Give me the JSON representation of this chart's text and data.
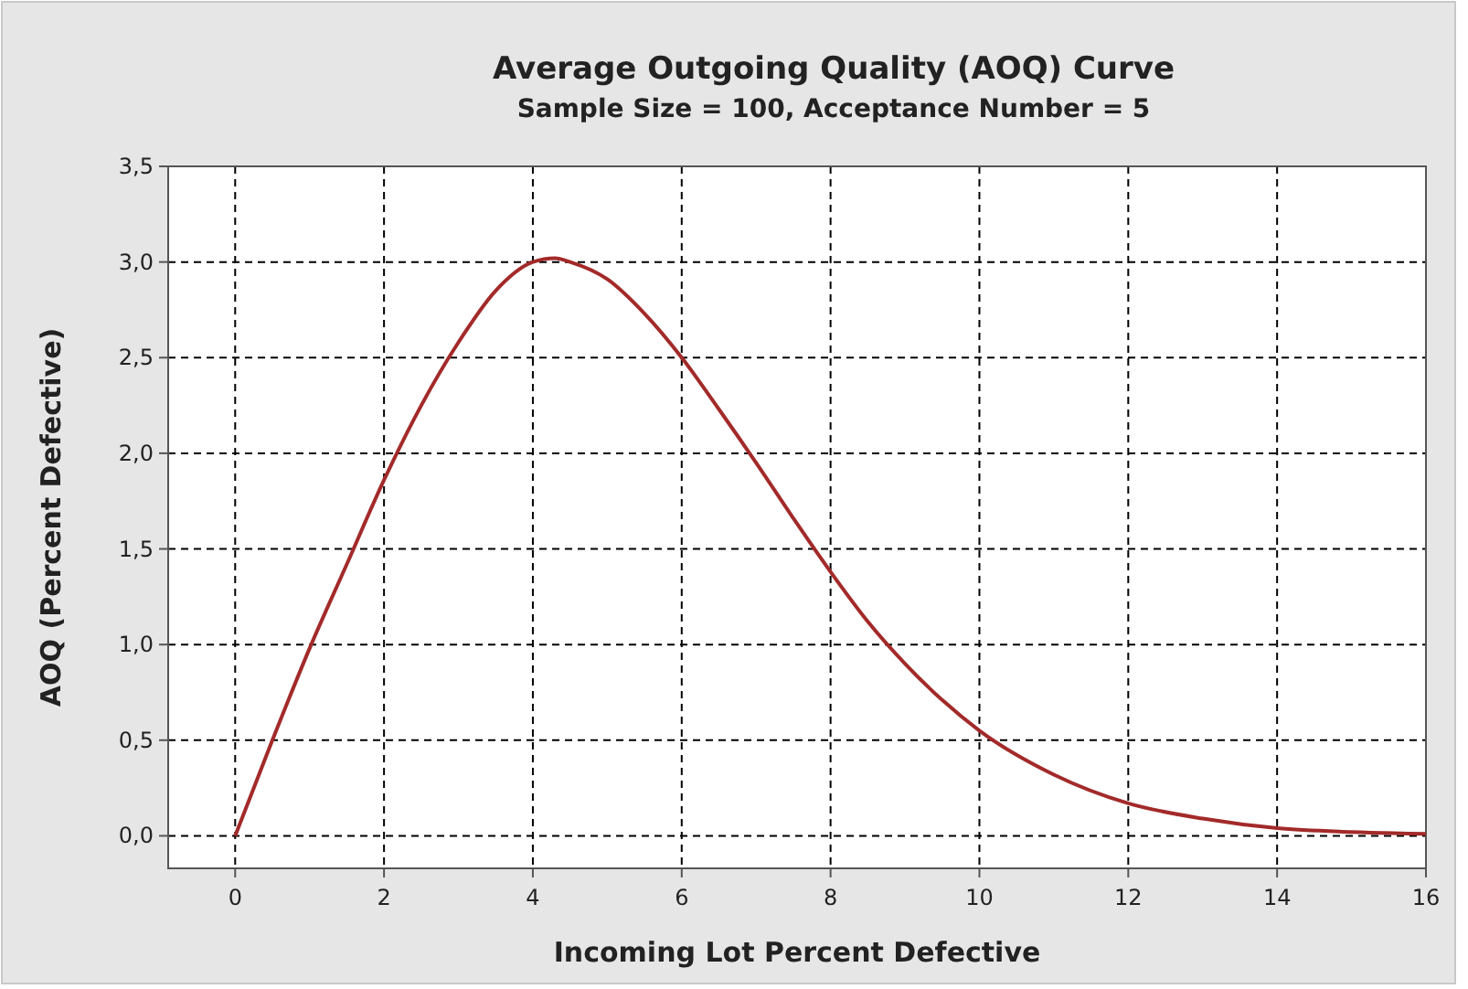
{
  "chart_data": {
    "type": "line",
    "title": "Average Outgoing Quality (AOQ) Curve",
    "subtitle": "Sample Size = 100, Acceptance Number = 5",
    "xlabel": "Incoming Lot Percent Defective",
    "ylabel": "AOQ (Percent Defective)",
    "x": [
      0,
      0.5,
      1,
      1.5,
      2,
      2.5,
      3,
      3.5,
      4,
      4.3,
      4.5,
      5,
      5.5,
      6,
      6.5,
      7,
      7.5,
      8,
      8.5,
      9,
      9.5,
      10,
      11,
      12,
      13,
      14,
      15,
      16
    ],
    "series": [
      {
        "color": "#a32a2a",
        "values": [
          0,
          0.5,
          0.98,
          1.42,
          1.86,
          2.25,
          2.58,
          2.85,
          3.0,
          3.02,
          3.0,
          2.91,
          2.73,
          2.5,
          2.23,
          1.95,
          1.66,
          1.38,
          1.12,
          0.9,
          0.71,
          0.55,
          0.32,
          0.17,
          0.09,
          0.04,
          0.02,
          0.01
        ]
      }
    ],
    "xlim": [
      -0.9,
      16
    ],
    "xticks": [
      0,
      2,
      4,
      6,
      8,
      10,
      12,
      14,
      16
    ],
    "ylim": [
      -0.17,
      3.5
    ],
    "yticks": [
      {
        "value": 0,
        "label": "0,0"
      },
      {
        "value": 0.5,
        "label": "0,5"
      },
      {
        "value": 1,
        "label": "1,0"
      },
      {
        "value": 1.5,
        "label": "1,5"
      },
      {
        "value": 2,
        "label": "2,0"
      },
      {
        "value": 2.5,
        "label": "2,5"
      },
      {
        "value": 3,
        "label": "3,0"
      },
      {
        "value": 3.5,
        "label": "3,5"
      }
    ],
    "grid": true,
    "line_style": "solid",
    "marker": "none"
  }
}
